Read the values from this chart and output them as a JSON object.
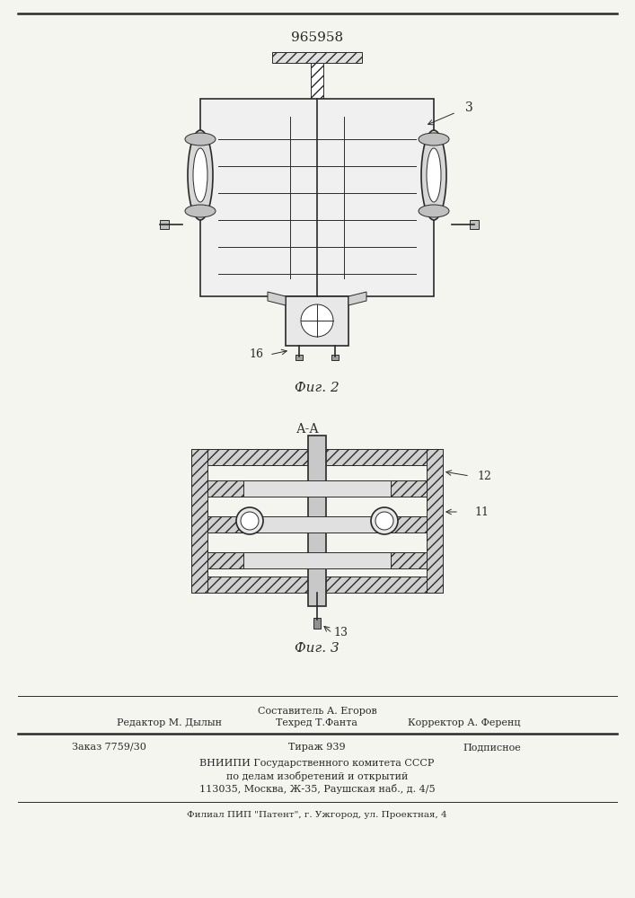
{
  "patent_number": "965958",
  "bg_color": "#f5f5f0",
  "line_color": "#2a2a2a",
  "fig2_label": "Фиг. 2",
  "fig3_label": "Фиг. 3",
  "section_label": "А-А",
  "label_3": "3",
  "label_11": "11",
  "label_12": "12",
  "label_13": "13",
  "label_16": "16",
  "footer_line1": "Составитель А. Егоров",
  "footer_line2_left": "Редактор М. Дылын",
  "footer_line2_mid": "Техред Т.Фанта",
  "footer_line2_right": "Корректор А. Ференц",
  "footer_line3_left": "Заказ 7759/30",
  "footer_line3_mid": "Тираж 939",
  "footer_line3_right": "Подписное",
  "footer_line4": "ВНИИПИ Государственного комитета СССР",
  "footer_line5": "по делам изобретений и открытий",
  "footer_line6": "113035, Москва, Ж-35, Раушская наб., д. 4/5",
  "footer_line7": "Филиал ПИП \"Патент\", г. Ужгород, ул. Проектная, 4"
}
